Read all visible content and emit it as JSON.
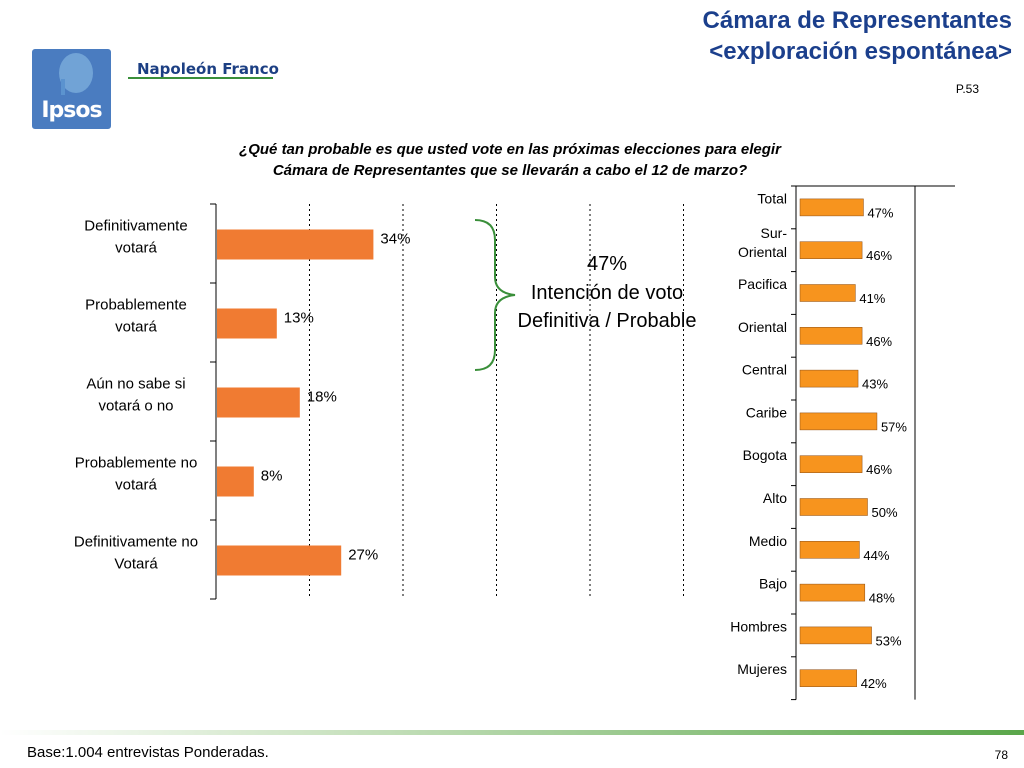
{
  "header": {
    "brand": "Napoleón Franco",
    "logo_text": "Ipsos",
    "title_line1": "Cámara de Representantes",
    "title_line2": "<exploración espontánea>",
    "page_ref": "P.53"
  },
  "question": {
    "line1": "¿Qué tan probable es que usted vote en las próximas elecciones para elegir",
    "line2": "Cámara de Representantes que se llevarán a cabo el 12 de marzo?"
  },
  "callout": {
    "percent": "47%",
    "line1": "Intención de voto",
    "line2": "Definitiva / Probable"
  },
  "footer": {
    "base": "Base:1.004 entrevistas Ponderadas.",
    "page_number": "78"
  },
  "colors": {
    "left_bar": "#f07b32",
    "right_bar": "#f7941e",
    "title": "#1b3f8c",
    "brand": "#1c3f83"
  },
  "chart_data": [
    {
      "type": "bar",
      "orientation": "horizontal",
      "categories": [
        [
          "Definitivamente",
          "votará"
        ],
        [
          "Probablemente",
          "votará"
        ],
        [
          "Aún no sabe si",
          "votará o no"
        ],
        [
          "Probablemente no",
          "votará"
        ],
        [
          "Definitivamente no",
          "Votará"
        ]
      ],
      "values": [
        34,
        13,
        18,
        8,
        27
      ],
      "value_labels": [
        "34%",
        "13%",
        "18%",
        "8%",
        "27%"
      ],
      "xlim": [
        0,
        100
      ],
      "grid": "dotted vertical"
    },
    {
      "type": "bar",
      "orientation": "horizontal",
      "categories": [
        [
          "Total"
        ],
        [
          "Sur-",
          "Oriental"
        ],
        [
          "Pacifica"
        ],
        [
          "Oriental"
        ],
        [
          "Central"
        ],
        [
          "Caribe"
        ],
        [
          "Bogota"
        ],
        [
          "Alto"
        ],
        [
          "Medio"
        ],
        [
          "Bajo"
        ],
        [
          "Hombres"
        ],
        [
          "Mujeres"
        ]
      ],
      "values": [
        47,
        46,
        41,
        46,
        43,
        57,
        46,
        50,
        44,
        48,
        53,
        42
      ],
      "value_labels": [
        "47%",
        "46%",
        "41%",
        "46%",
        "43%",
        "57%",
        "46%",
        "50%",
        "44%",
        "48%",
        "53%",
        "42%"
      ],
      "xlim": [
        0,
        100
      ]
    }
  ]
}
